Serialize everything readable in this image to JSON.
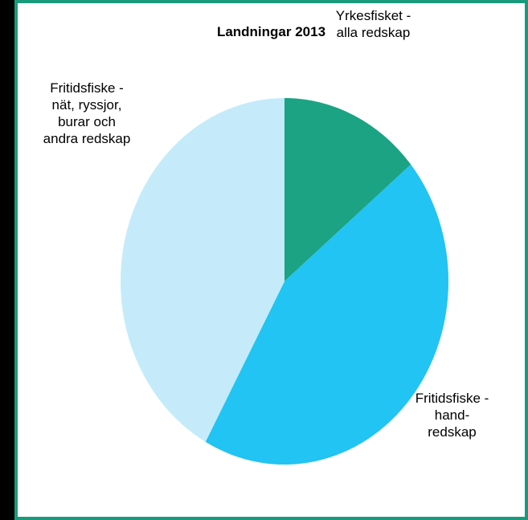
{
  "chart_data": {
    "type": "pie",
    "title": "Landningar 2013",
    "categories": [
      "Yrkesfisket - alla redskap",
      "Fritidsfiske - hand-redskap",
      "Fritidsfiske - nät, ryssjor, burar och andra redskap"
    ],
    "values": [
      14,
      44,
      42
    ],
    "colors": [
      "#1ba383",
      "#21c4f2",
      "#c5ebfa"
    ]
  }
}
